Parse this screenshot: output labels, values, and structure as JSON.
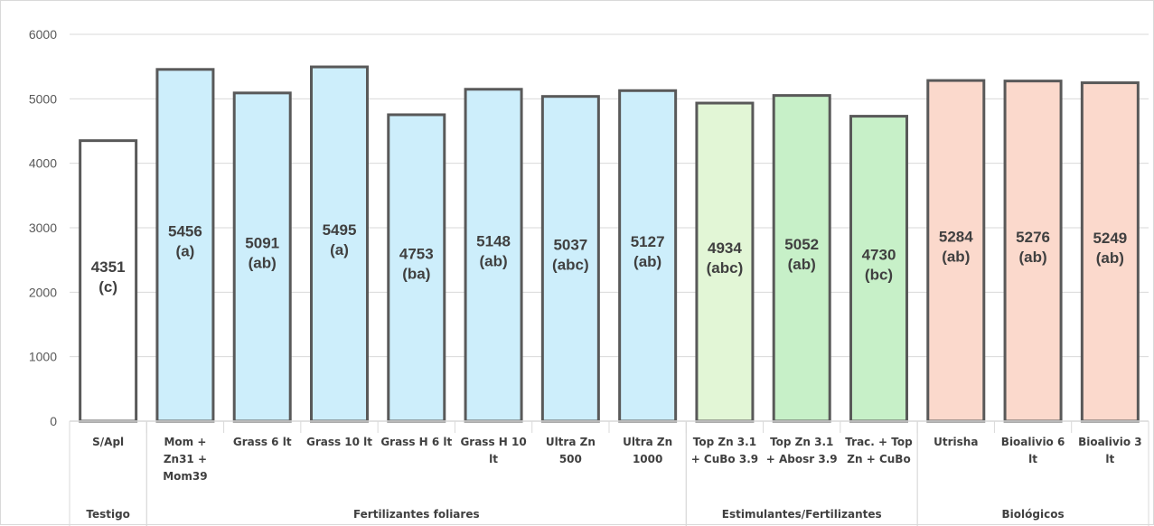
{
  "chart_data": {
    "type": "bar",
    "title": "",
    "xlabel": "",
    "ylabel": "",
    "ylim": [
      0,
      6000
    ],
    "yticks": [
      0,
      1000,
      2000,
      3000,
      4000,
      5000,
      6000
    ],
    "grid": true,
    "legend": "none",
    "categories": [
      "S/Apl",
      "Mom + Zn31 + Mom39",
      "Grass 6 lt",
      "Grass 10 lt",
      "Grass H 6 lt",
      "Grass H 10 lt",
      "Ultra Zn 500",
      "Ultra Zn 1000",
      "Top Zn 3.1 + CuBo 3.9",
      "Top Zn 3.1 + Abosr 3.9",
      "Trac. + Top Zn + CuBo",
      "Utrisha",
      "Bioalivio 6 lt",
      "Bioalivio 3 lt"
    ],
    "category_lines": [
      [
        "S/Apl"
      ],
      [
        "Mom +",
        "Zn31 +",
        "Mom39"
      ],
      [
        "Grass 6 lt"
      ],
      [
        "Grass 10 lt"
      ],
      [
        "Grass H 6 lt"
      ],
      [
        "Grass H 10",
        "lt"
      ],
      [
        "Ultra Zn",
        "500"
      ],
      [
        "Ultra Zn",
        "1000"
      ],
      [
        "Top Zn 3.1",
        "+ CuBo 3.9"
      ],
      [
        "Top Zn 3.1",
        "+ Abosr 3.9"
      ],
      [
        "Trac. + Top",
        "Zn + CuBo"
      ],
      [
        "Utrisha"
      ],
      [
        "Bioalivio 6",
        "lt"
      ],
      [
        "Bioalivio 3",
        "lt"
      ]
    ],
    "values": [
      4351,
      5456,
      5091,
      5495,
      4753,
      5148,
      5037,
      5127,
      4934,
      5052,
      4730,
      5284,
      5276,
      5249
    ],
    "letters": [
      "(c)",
      "(a)",
      "(ab)",
      "(a)",
      "(ba)",
      "(ab)",
      "(abc)",
      "(ab)",
      "(abc)",
      "(ab)",
      "(bc)",
      "(ab)",
      "(ab)",
      "(ab)"
    ],
    "fills": [
      "#ffffff",
      "#cdeefb",
      "#cdeefb",
      "#cdeefb",
      "#cdeefb",
      "#cdeefb",
      "#cdeefb",
      "#cdeefb",
      "#e2f6d6",
      "#c7f0c8",
      "#c7f0c8",
      "#fbd9cc",
      "#fbd9cc",
      "#fbd9cc"
    ],
    "groups": [
      {
        "name": "Testigo",
        "start": 0,
        "end": 0
      },
      {
        "name": "Fertilizantes foliares",
        "start": 1,
        "end": 7
      },
      {
        "name": "Estimulantes/Fertilizantes",
        "start": 8,
        "end": 10
      },
      {
        "name": "Biológicos",
        "start": 11,
        "end": 13
      }
    ],
    "colors": {
      "bar_stroke": "#595959",
      "grid": "#d9d9d9",
      "text": "#404040"
    }
  }
}
